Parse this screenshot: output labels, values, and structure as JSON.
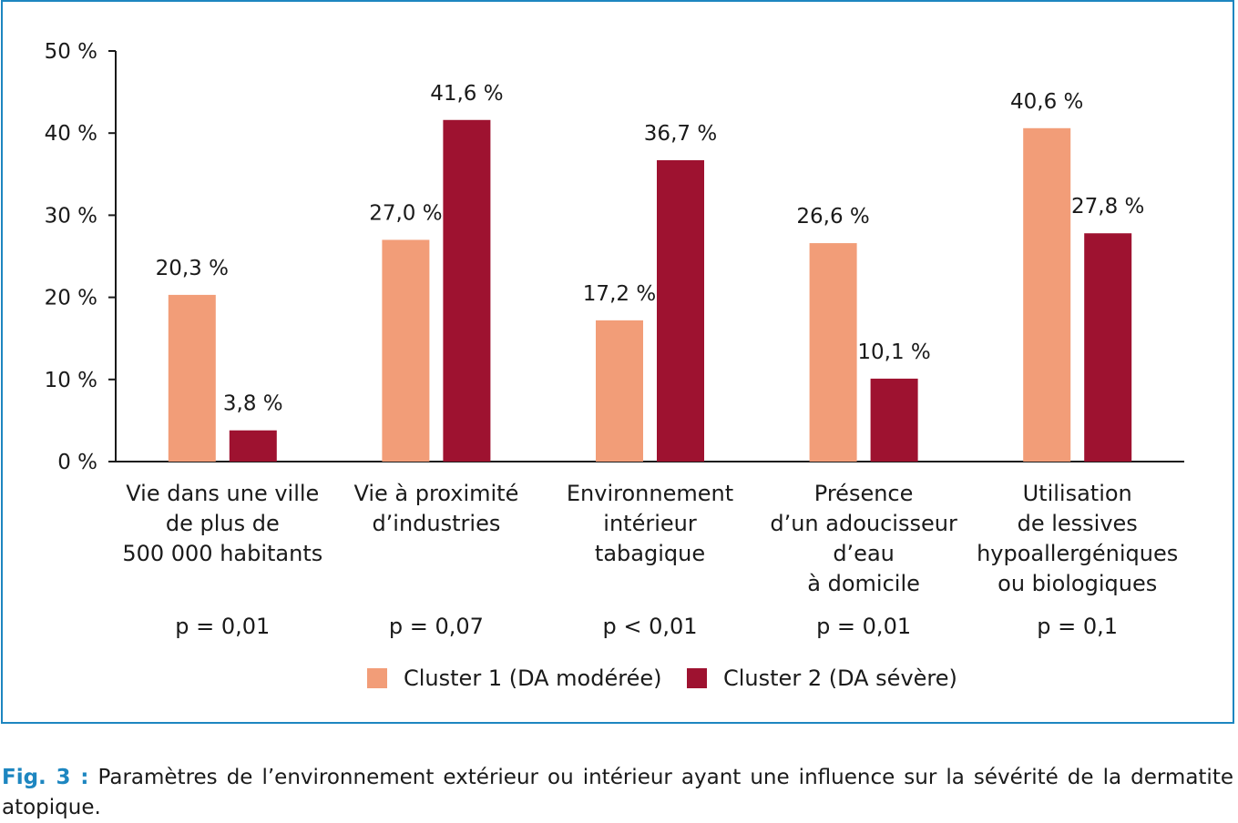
{
  "chart_data": {
    "type": "bar",
    "categories": [
      "Vie dans une ville\nde plus de\n500 000 habitants",
      "Vie à proximité\nd’industries",
      "Environnement\nintérieur\ntabagique",
      "Présence\nd’un adoucisseur\nd’eau\nà domicile",
      "Utilisation\nde lessives\nhypoallergéniques\nou biologiques"
    ],
    "series": [
      {
        "name": "Cluster 1 (DA modérée)",
        "color": "#f29d78",
        "values": [
          20.3,
          27.0,
          17.2,
          26.6,
          40.6
        ],
        "labels": [
          "20,3 %",
          "27,0 %",
          "17,2 %",
          "26,6 %",
          "40,6 %"
        ]
      },
      {
        "name": "Cluster 2 (DA sévère)",
        "color": "#9e1230",
        "values": [
          3.8,
          41.6,
          36.7,
          10.1,
          27.8
        ],
        "labels": [
          "3,8 %",
          "41,6 %",
          "36,7 %",
          "10,1 %",
          "27,8 %"
        ]
      }
    ],
    "p_values": [
      "p = 0,01",
      "p = 0,07",
      "p < 0,01",
      "p = 0,01",
      "p = 0,1"
    ],
    "y_ticks": [
      "0 %",
      "10 %",
      "20 %",
      "30 %",
      "40 %",
      "50 %"
    ],
    "ylim": [
      0,
      50
    ],
    "grid": false,
    "legend_position": "bottom-center"
  },
  "caption": {
    "label": "Fig. 3 :",
    "text": "Paramètres de l’environnement extérieur ou intérieur ayant une influence sur la sévérité de la dermatite atopique."
  }
}
